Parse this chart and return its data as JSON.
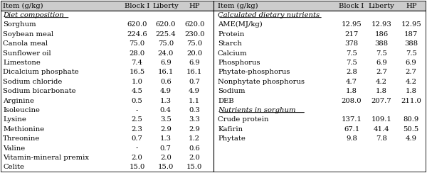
{
  "left_header": [
    "Item (g/kg)",
    "Block I",
    "Liberty",
    "HP"
  ],
  "right_header": [
    "Item (g/kg)",
    "Block I",
    "Liberty",
    "HP"
  ],
  "left_section1_title": "Diet composition",
  "left_rows": [
    [
      "Sorghum",
      "620.0",
      "620.0",
      "620.0"
    ],
    [
      "Soybean meal",
      "224.6",
      "225.4",
      "230.0"
    ],
    [
      "Canola meal",
      "75.0",
      "75.0",
      "75.0"
    ],
    [
      "Sunflower oil",
      "28.0",
      "24.0",
      "20.0"
    ],
    [
      "Limestone",
      "7.4",
      "6.9",
      "6.9"
    ],
    [
      "Dicalcium phosphate",
      "16.5",
      "16.1",
      "16.1"
    ],
    [
      "Sodium chloride",
      "1.0",
      "0.6",
      "0.7"
    ],
    [
      "Sodium bicarbonate",
      "4.5",
      "4.9",
      "4.9"
    ],
    [
      "Arginine",
      "0.5",
      "1.3",
      "1.1"
    ],
    [
      "Isoleucine",
      "-",
      "0.4",
      "0.3"
    ],
    [
      "Lysine",
      "2.5",
      "3.5",
      "3.3"
    ],
    [
      "Methionine",
      "2.3",
      "2.9",
      "2.9"
    ],
    [
      "Threonine",
      "0.7",
      "1.3",
      "1.2"
    ],
    [
      "Valine",
      "-",
      "0.7",
      "0.6"
    ],
    [
      "Vitamin-mineral premix",
      "2.0",
      "2.0",
      "2.0"
    ],
    [
      "Celite",
      "15.0",
      "15.0",
      "15.0"
    ]
  ],
  "right_section1_title": "Calculated dietary nutrients",
  "right_rows_section1": [
    [
      "AME(MJ/kg)",
      "12.95",
      "12.93",
      "12.95"
    ],
    [
      "Protein",
      "217",
      "186",
      "187"
    ],
    [
      "Starch",
      "378",
      "388",
      "388"
    ],
    [
      "Calcium",
      "7.5",
      "7.5",
      "7.5"
    ],
    [
      "Phosphorus",
      "7.5",
      "6.9",
      "6.9"
    ],
    [
      "Phytate-phosphorus",
      "2.8",
      "2.7",
      "2.7"
    ],
    [
      "Nonphytate phosphorus",
      "4.7",
      "4.2",
      "4.2"
    ],
    [
      "Sodium",
      "1.8",
      "1.8",
      "1.8"
    ],
    [
      "DEB",
      "208.0",
      "207.7",
      "211.0"
    ]
  ],
  "right_section2_title": "Nutrients in sorghum",
  "right_rows_section2": [
    [
      "Crude protein",
      "137.1",
      "109.1",
      "80.9"
    ],
    [
      "Kafirin",
      "67.1",
      "41.4",
      "50.5"
    ],
    [
      "Phytate",
      "9.8",
      "7.8",
      "4.9"
    ]
  ],
  "bg_color": "#ffffff",
  "text_color": "#000000",
  "header_bg": "#cccccc",
  "font_size": 7.2,
  "title_font_size": 7.2,
  "total_rows": 18,
  "lc": [
    0.0,
    0.285,
    0.355,
    0.42,
    0.49
  ],
  "rc": [
    0.505,
    0.79,
    0.86,
    0.93,
    1.0
  ]
}
